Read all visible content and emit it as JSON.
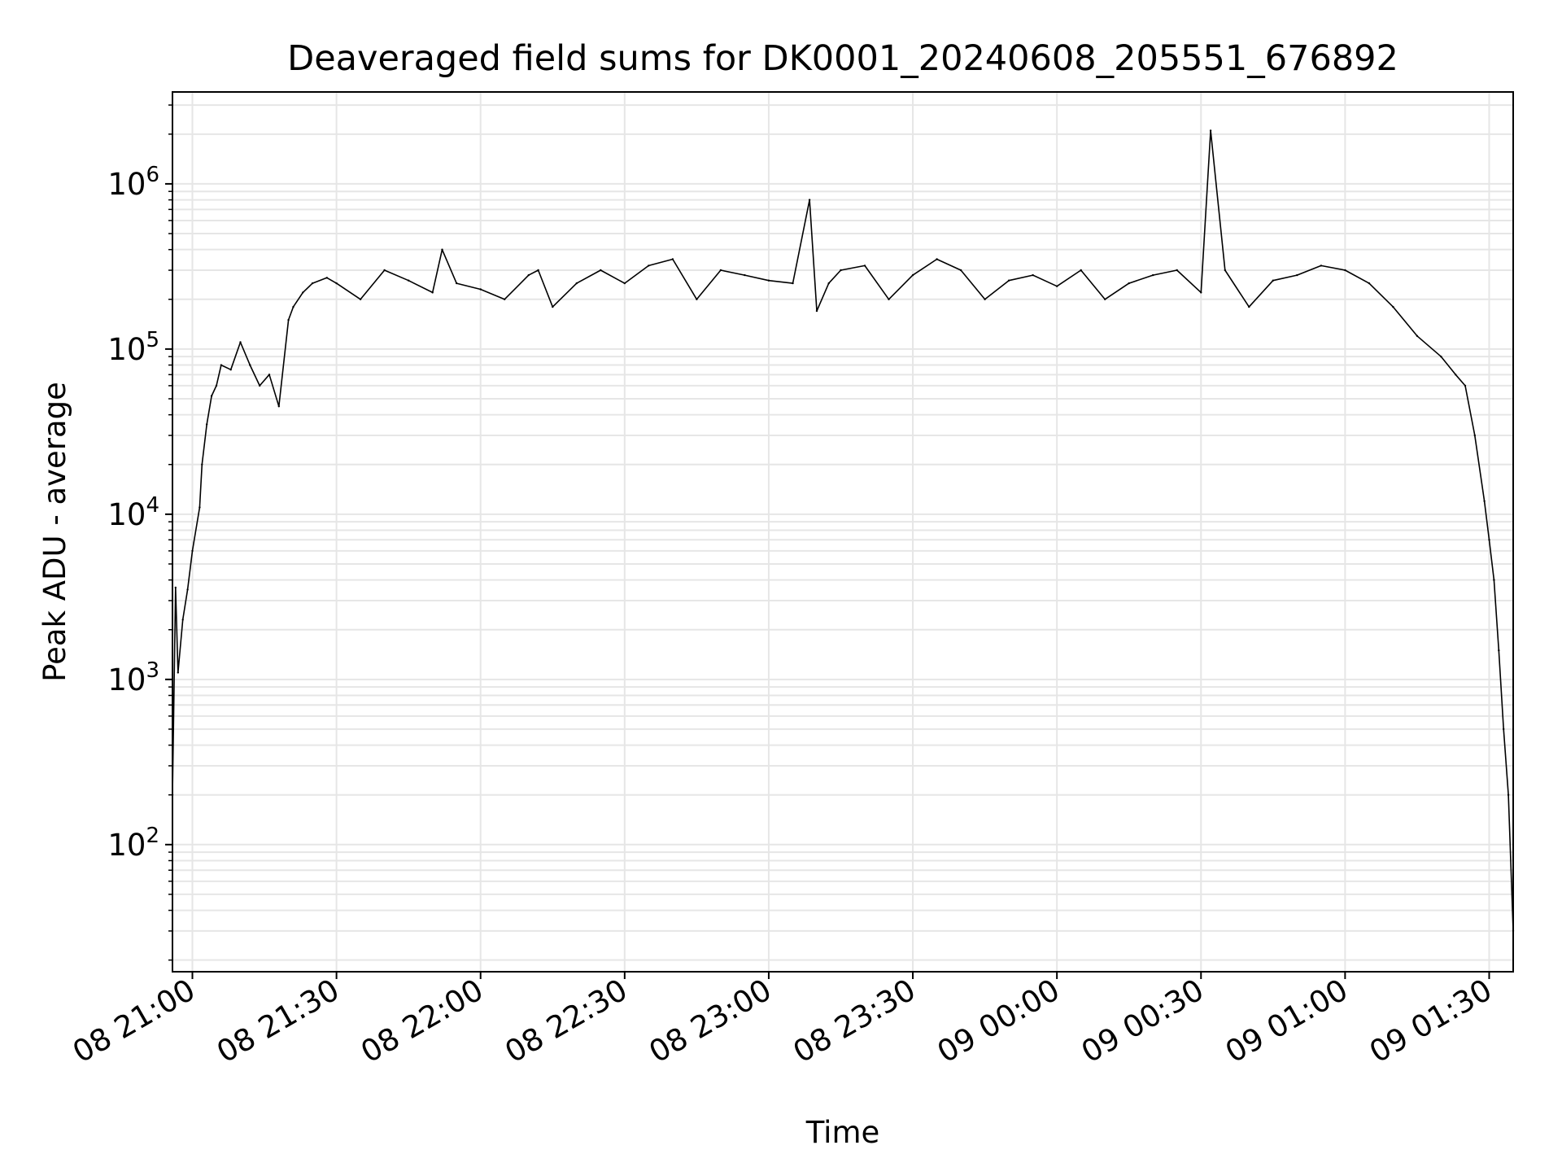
{
  "chart_data": {
    "type": "line",
    "title": "Deaveraged field sums for DK0001_20240608_205551_676892",
    "xlabel": "Time",
    "ylabel": "Peak ADU - average",
    "x_start": "2024-06-08 20:55:51",
    "x_end": "2024-06-09 01:35:00",
    "xlim": [
      "2024-06-08 20:55:51",
      "2024-06-09 01:35:00"
    ],
    "x_ticks": [
      {
        "time": "2024-06-08 21:00",
        "label": "08 21:00"
      },
      {
        "time": "2024-06-08 21:30",
        "label": "08 21:30"
      },
      {
        "time": "2024-06-08 22:00",
        "label": "08 22:00"
      },
      {
        "time": "2024-06-08 22:30",
        "label": "08 22:30"
      },
      {
        "time": "2024-06-08 23:00",
        "label": "08 23:00"
      },
      {
        "time": "2024-06-08 23:30",
        "label": "08 23:30"
      },
      {
        "time": "2024-06-09 00:00",
        "label": "09 00:00"
      },
      {
        "time": "2024-06-09 00:30",
        "label": "09 00:30"
      },
      {
        "time": "2024-06-09 01:00",
        "label": "09 01:00"
      },
      {
        "time": "2024-06-09 01:30",
        "label": "09 01:30"
      }
    ],
    "y_scale": "log",
    "ylim": [
      17,
      3600000
    ],
    "y_ticks": [
      {
        "value": 100,
        "base": "10",
        "exp": "2"
      },
      {
        "value": 1000,
        "base": "10",
        "exp": "3"
      },
      {
        "value": 10000,
        "base": "10",
        "exp": "4"
      },
      {
        "value": 100000,
        "base": "10",
        "exp": "5"
      },
      {
        "value": 1000000,
        "base": "10",
        "exp": "6"
      }
    ],
    "grid": true,
    "colors": {
      "line": "#000000",
      "grid": "#e6e6e6",
      "axes": "#000000"
    },
    "series": [
      {
        "x": [
          "2024-06-08 20:55:51",
          "2024-06-08 20:56:30",
          "2024-06-08 20:57:00",
          "2024-06-08 20:58:00",
          "2024-06-08 20:59:00",
          "2024-06-08 21:00:00",
          "2024-06-08 21:01:30",
          "2024-06-08 21:02:00",
          "2024-06-08 21:03:00",
          "2024-06-08 21:04:00",
          "2024-06-08 21:05:00",
          "2024-06-08 21:06:00",
          "2024-06-08 21:08:00",
          "2024-06-08 21:10:00",
          "2024-06-08 21:12:00",
          "2024-06-08 21:14:00",
          "2024-06-08 21:16:00",
          "2024-06-08 21:18:00",
          "2024-06-08 21:20:00",
          "2024-06-08 21:21:00",
          "2024-06-08 21:23:00",
          "2024-06-08 21:25:00",
          "2024-06-08 21:28:00",
          "2024-06-08 21:30:00",
          "2024-06-08 21:35:00",
          "2024-06-08 21:40:00",
          "2024-06-08 21:45:00",
          "2024-06-08 21:50:00",
          "2024-06-08 21:52:00",
          "2024-06-08 21:55:00",
          "2024-06-08 22:00:00",
          "2024-06-08 22:05:00",
          "2024-06-08 22:10:00",
          "2024-06-08 22:12:00",
          "2024-06-08 22:15:00",
          "2024-06-08 22:20:00",
          "2024-06-08 22:25:00",
          "2024-06-08 22:30:00",
          "2024-06-08 22:35:00",
          "2024-06-08 22:40:00",
          "2024-06-08 22:45:00",
          "2024-06-08 22:50:00",
          "2024-06-08 22:55:00",
          "2024-06-08 23:00:00",
          "2024-06-08 23:05:00",
          "2024-06-08 23:08:30",
          "2024-06-08 23:10:00",
          "2024-06-08 23:12:30",
          "2024-06-08 23:15:00",
          "2024-06-08 23:20:00",
          "2024-06-08 23:25:00",
          "2024-06-08 23:30:00",
          "2024-06-08 23:35:00",
          "2024-06-08 23:40:00",
          "2024-06-08 23:45:00",
          "2024-06-08 23:50:00",
          "2024-06-08 23:55:00",
          "2024-06-09 00:00:00",
          "2024-06-09 00:05:00",
          "2024-06-09 00:10:00",
          "2024-06-09 00:15:00",
          "2024-06-09 00:20:00",
          "2024-06-09 00:25:00",
          "2024-06-09 00:30:00",
          "2024-06-09 00:32:00",
          "2024-06-09 00:35:00",
          "2024-06-09 00:40:00",
          "2024-06-09 00:45:00",
          "2024-06-09 00:50:00",
          "2024-06-09 00:55:00",
          "2024-06-09 01:00:00",
          "2024-06-09 01:05:00",
          "2024-06-09 01:10:00",
          "2024-06-09 01:15:00",
          "2024-06-09 01:20:00",
          "2024-06-09 01:23:00",
          "2024-06-09 01:25:00",
          "2024-06-09 01:27:00",
          "2024-06-09 01:29:00",
          "2024-06-09 01:30:00",
          "2024-06-09 01:31:00",
          "2024-06-09 01:32:00",
          "2024-06-09 01:33:00",
          "2024-06-09 01:34:00",
          "2024-06-09 01:35:00"
        ],
        "values": [
          200,
          3600,
          1100,
          2300,
          3500,
          6000,
          11000,
          20000,
          35000,
          52000,
          60000,
          80000,
          75000,
          110000,
          80000,
          60000,
          70000,
          45000,
          150000,
          180000,
          220000,
          250000,
          270000,
          250000,
          200000,
          300000,
          260000,
          220000,
          400000,
          250000,
          230000,
          200000,
          280000,
          300000,
          180000,
          250000,
          300000,
          250000,
          320000,
          350000,
          200000,
          300000,
          280000,
          260000,
          250000,
          800000,
          170000,
          250000,
          300000,
          320000,
          200000,
          280000,
          350000,
          300000,
          200000,
          260000,
          280000,
          240000,
          300000,
          200000,
          250000,
          280000,
          300000,
          220000,
          2100000,
          300000,
          180000,
          260000,
          280000,
          320000,
          300000,
          250000,
          180000,
          120000,
          90000,
          70000,
          60000,
          30000,
          12000,
          7000,
          4000,
          1500,
          500,
          200,
          30
        ]
      }
    ]
  }
}
